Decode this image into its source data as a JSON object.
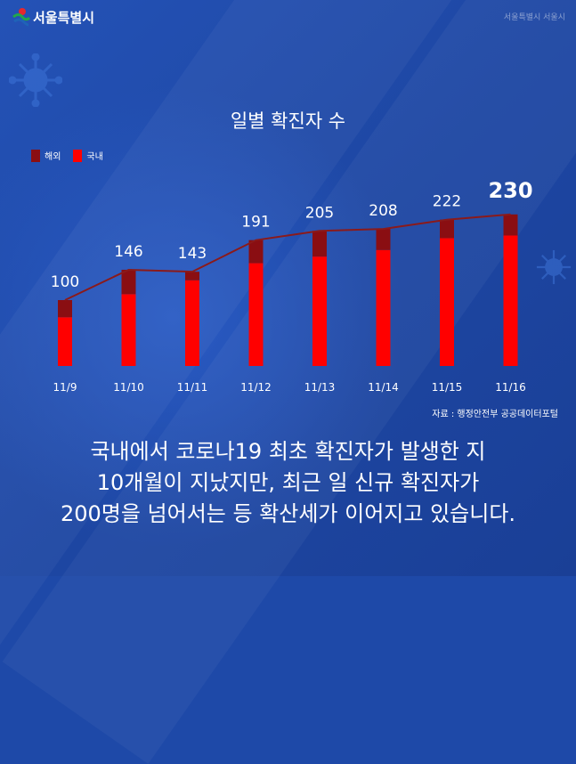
{
  "header": {
    "logo_text": "서울특별시",
    "corner_text": "서울특별시 서울시"
  },
  "colors": {
    "background": "#1e49a8",
    "overseas": "#8a0e12",
    "domestic": "#ff0000",
    "line": "#8b1a1a",
    "text": "#ffffff"
  },
  "chart_data": {
    "type": "bar",
    "title": "일별 확진자 수",
    "categories": [
      "11/9",
      "11/10",
      "11/11",
      "11/12",
      "11/13",
      "11/14",
      "11/15",
      "11/16"
    ],
    "totals": [
      100,
      146,
      143,
      191,
      205,
      208,
      222,
      230
    ],
    "series": [
      {
        "name": "해외",
        "values": [
          26,
          37,
          13,
          35,
          39,
          32,
          28,
          32
        ]
      },
      {
        "name": "국내",
        "values": [
          74,
          109,
          130,
          156,
          166,
          176,
          194,
          198
        ]
      }
    ],
    "stacked": true,
    "overlay": "line through bar totals",
    "highlight_index": 7,
    "legend": "top-left",
    "ylim": [
      0,
      240
    ],
    "grid": false
  },
  "source": "자료 : 행정안전부 공공데이터포털",
  "caption": {
    "line1": "국내에서 코로나19 최초 확진자가 발생한 지",
    "line2": "10개월이 지났지만, 최근 일 신규 확진자가",
    "line3": "200명을 넘어서는 등 확산세가 이어지고 있습니다."
  }
}
